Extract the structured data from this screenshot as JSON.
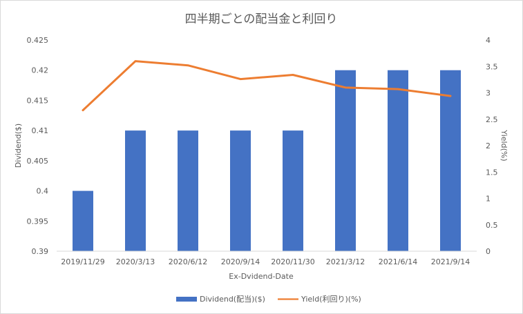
{
  "chart_data": {
    "type": "bar+line",
    "title": "四半期ごとの配当金と利回り",
    "xlabel": "Ex-Dvidend-Date",
    "ylabel_left": "Dividend($)",
    "ylabel_right": "Yield(%)",
    "categories": [
      "2019/11/29",
      "2020/3/13",
      "2020/6/12",
      "2020/9/14",
      "2020/11/30",
      "2021/3/12",
      "2021/6/14",
      "2021/9/14"
    ],
    "series": [
      {
        "name": "Dividend(配当)($)",
        "type": "bar",
        "axis": "left",
        "color": "#4472C4",
        "values": [
          0.4,
          0.41,
          0.41,
          0.41,
          0.41,
          0.42,
          0.42,
          0.42
        ]
      },
      {
        "name": "Yield(利回り)(%)",
        "type": "line",
        "axis": "right",
        "color": "#ED7D31",
        "values": [
          2.67,
          3.6,
          3.52,
          3.26,
          3.34,
          3.1,
          3.07,
          2.94
        ]
      }
    ],
    "ylim_left": [
      0.39,
      0.425
    ],
    "yticks_left": [
      "0.39",
      "0.395",
      "0.4",
      "0.405",
      "0.41",
      "0.415",
      "0.42",
      "0.425"
    ],
    "ylim_right": [
      0,
      4
    ],
    "yticks_right": [
      "0",
      "0.5",
      "1",
      "1.5",
      "2",
      "2.5",
      "3",
      "3.5",
      "4"
    ],
    "grid": false,
    "legend_position": "bottom"
  }
}
